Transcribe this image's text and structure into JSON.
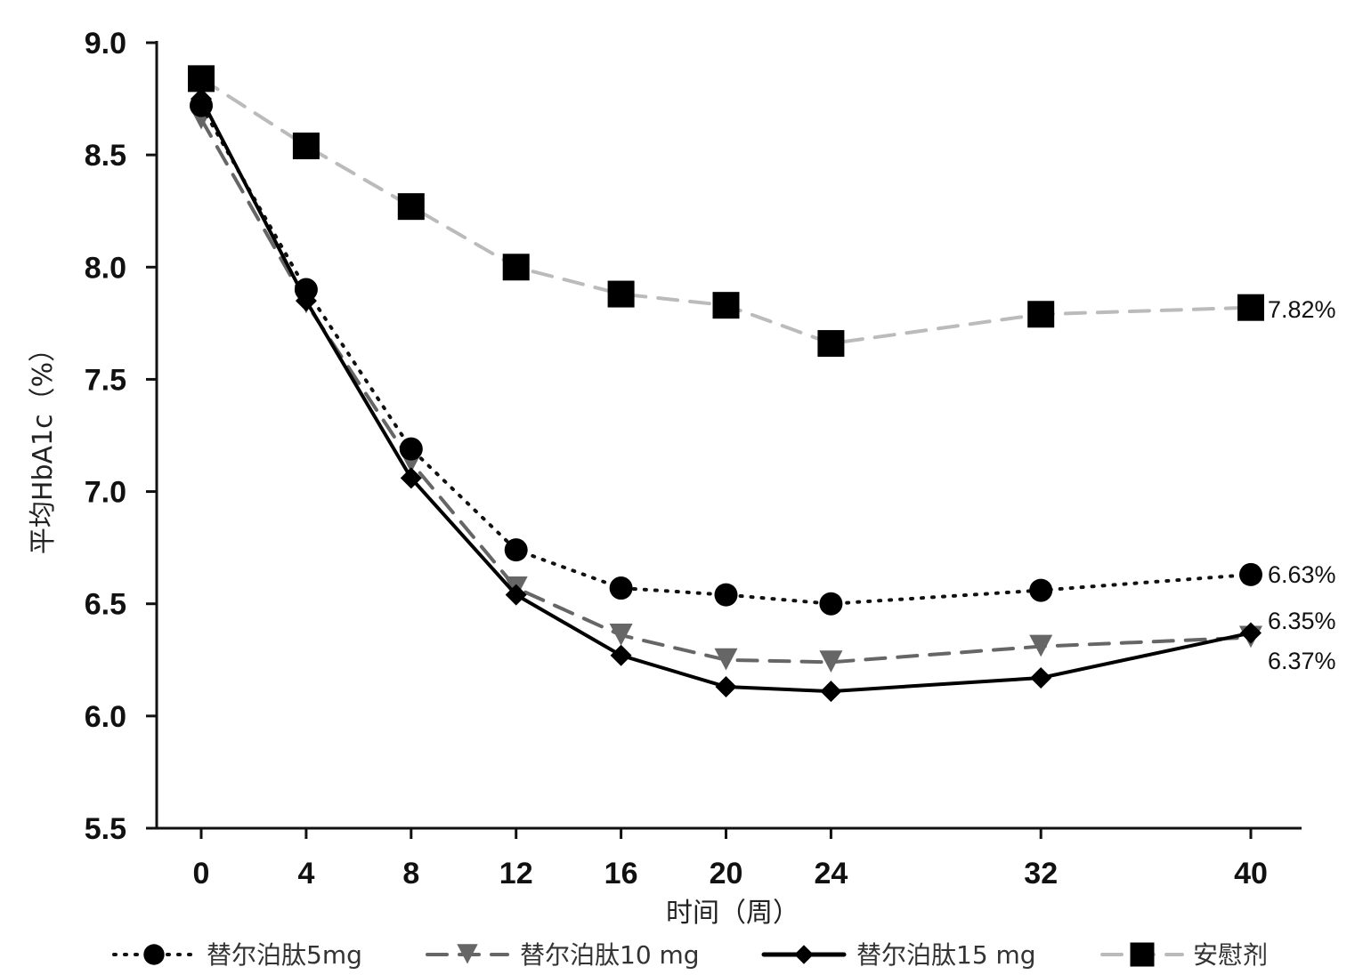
{
  "chart_data": {
    "type": "line",
    "title": "",
    "xlabel": "时间（周）",
    "ylabel": "平均HbA1c（%）",
    "x": [
      0,
      4,
      8,
      12,
      16,
      20,
      24,
      32,
      40
    ],
    "x_ticks": [
      "0",
      "4",
      "8",
      "12",
      "16",
      "20",
      "24",
      "32",
      "40"
    ],
    "y_ticks": [
      "5.5",
      "6.0",
      "6.5",
      "7.0",
      "7.5",
      "8.0",
      "8.5",
      "9.0"
    ],
    "ylim": [
      5.5,
      9.0
    ],
    "xlim": [
      0,
      40
    ],
    "grid": false,
    "legend_position": "bottom",
    "series": [
      {
        "name": "替尔泊肽5mg",
        "marker": "circle",
        "line": "dotted",
        "color": "#111111",
        "values": [
          8.72,
          7.9,
          7.19,
          6.74,
          6.57,
          6.54,
          6.5,
          6.56,
          6.63
        ],
        "end_label": "6.63%"
      },
      {
        "name": "替尔泊肽10 mg",
        "marker": "triangle-down",
        "line": "dashed",
        "color": "#666666",
        "values": [
          8.66,
          7.84,
          7.13,
          6.57,
          6.36,
          6.25,
          6.24,
          6.31,
          6.35
        ],
        "end_label": "6.35%"
      },
      {
        "name": "替尔泊肽15 mg",
        "marker": "diamond",
        "line": "solid",
        "color": "#000000",
        "values": [
          8.75,
          7.85,
          7.06,
          6.54,
          6.27,
          6.13,
          6.11,
          6.17,
          6.37
        ],
        "end_label": "6.37%"
      },
      {
        "name": "安慰剂",
        "marker": "square",
        "line": "dashed",
        "color": "#bbbbbb",
        "values": [
          8.84,
          8.54,
          8.27,
          8.0,
          7.88,
          7.83,
          7.66,
          7.79,
          7.82
        ],
        "end_label": "7.82%"
      }
    ]
  }
}
